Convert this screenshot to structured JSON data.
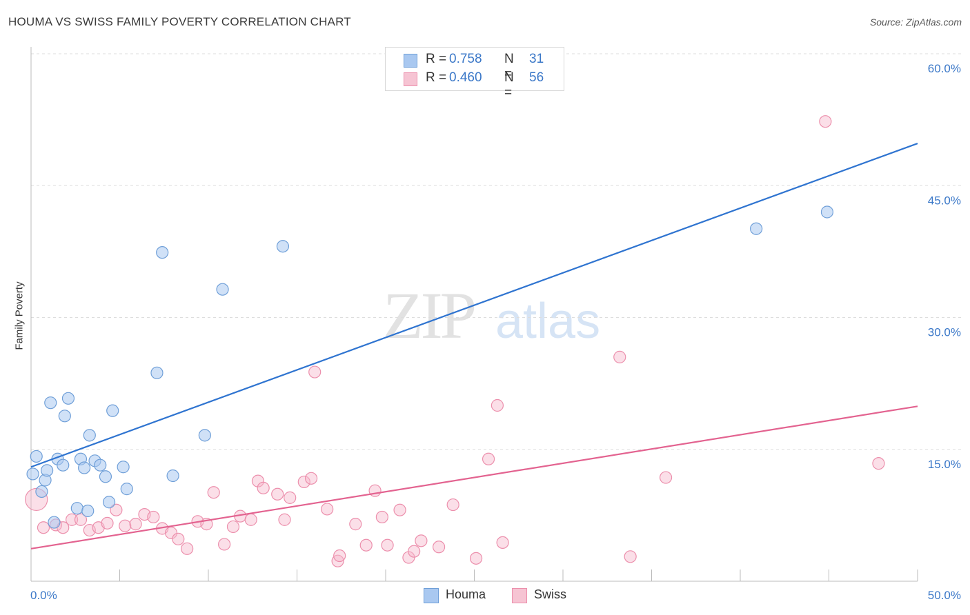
{
  "title": "HOUMA VS SWISS FAMILY POVERTY CORRELATION CHART",
  "source": "Source: ZipAtlas.com",
  "watermark": {
    "zip": "ZIP",
    "atlas": "atlas"
  },
  "legend_top": {
    "rows": [
      {
        "r_label": "R =",
        "r_value": "0.758",
        "n_label": "N =",
        "n_value": "31"
      },
      {
        "r_label": "R =",
        "r_value": "0.460",
        "n_label": "N =",
        "n_value": "56"
      }
    ]
  },
  "legend_bottom": {
    "items": [
      {
        "label": "Houma"
      },
      {
        "label": "Swiss"
      }
    ]
  },
  "colors": {
    "houma_fill": "#a9c8f0",
    "houma_stroke": "#6f9fd8",
    "houma_line": "#2f74d0",
    "swiss_fill": "#f6b9cb",
    "swiss_stroke": "#ec8fac",
    "swiss_line": "#e36390",
    "axis_text": "#3b78c8",
    "grid": "#dddddd"
  },
  "chart_data": {
    "type": "scatter",
    "title": "HOUMA VS SWISS FAMILY POVERTY CORRELATION CHART",
    "xlabel": "",
    "ylabel": "Family Poverty",
    "xlim": [
      0,
      50
    ],
    "ylim": [
      0,
      60
    ],
    "x_tick_labels": [
      "0.0%",
      "50.0%"
    ],
    "y_ticks": [
      15,
      30,
      45,
      60
    ],
    "y_tick_labels": [
      "15.0%",
      "30.0%",
      "45.0%",
      "60.0%"
    ],
    "grid": true,
    "series": [
      {
        "name": "Houma",
        "r": 0.758,
        "n": 31,
        "trend": {
          "x": [
            0,
            50
          ],
          "y": [
            13.0,
            49.8
          ]
        },
        "points": [
          [
            0.1,
            12.2
          ],
          [
            0.3,
            14.2
          ],
          [
            0.6,
            10.2
          ],
          [
            0.8,
            11.5
          ],
          [
            0.9,
            12.6
          ],
          [
            1.1,
            20.3
          ],
          [
            1.3,
            6.7
          ],
          [
            1.5,
            13.9
          ],
          [
            1.8,
            13.2
          ],
          [
            1.9,
            18.8
          ],
          [
            2.1,
            20.8
          ],
          [
            2.6,
            8.3
          ],
          [
            2.8,
            13.9
          ],
          [
            3.0,
            12.9
          ],
          [
            3.2,
            8.0
          ],
          [
            3.3,
            16.6
          ],
          [
            3.6,
            13.7
          ],
          [
            3.9,
            13.2
          ],
          [
            4.2,
            11.9
          ],
          [
            4.4,
            9.0
          ],
          [
            4.6,
            19.4
          ],
          [
            5.2,
            13.0
          ],
          [
            5.4,
            10.5
          ],
          [
            7.1,
            23.7
          ],
          [
            7.4,
            37.4
          ],
          [
            8.0,
            12.0
          ],
          [
            9.8,
            16.6
          ],
          [
            10.8,
            33.2
          ],
          [
            14.2,
            38.1
          ],
          [
            40.9,
            40.1
          ],
          [
            44.9,
            42.0
          ]
        ]
      },
      {
        "name": "Swiss",
        "r": 0.46,
        "n": 56,
        "trend": {
          "x": [
            0,
            50
          ],
          "y": [
            3.7,
            19.9
          ]
        },
        "points": [
          [
            0.3,
            9.3
          ],
          [
            0.7,
            6.1
          ],
          [
            1.4,
            6.4
          ],
          [
            1.8,
            6.1
          ],
          [
            2.3,
            7.0
          ],
          [
            2.8,
            7.0
          ],
          [
            3.3,
            5.8
          ],
          [
            3.8,
            6.1
          ],
          [
            4.3,
            6.6
          ],
          [
            4.8,
            8.1
          ],
          [
            5.3,
            6.3
          ],
          [
            5.9,
            6.5
          ],
          [
            6.4,
            7.6
          ],
          [
            6.9,
            7.3
          ],
          [
            7.4,
            6.0
          ],
          [
            7.9,
            5.5
          ],
          [
            8.3,
            4.8
          ],
          [
            8.8,
            3.7
          ],
          [
            9.4,
            6.8
          ],
          [
            9.9,
            6.5
          ],
          [
            10.3,
            10.1
          ],
          [
            10.9,
            4.2
          ],
          [
            11.4,
            6.2
          ],
          [
            11.8,
            7.4
          ],
          [
            12.4,
            7.0
          ],
          [
            12.8,
            11.4
          ],
          [
            13.1,
            10.6
          ],
          [
            13.9,
            9.9
          ],
          [
            14.3,
            7.0
          ],
          [
            14.6,
            9.5
          ],
          [
            15.4,
            11.3
          ],
          [
            15.8,
            11.7
          ],
          [
            16.0,
            23.8
          ],
          [
            16.7,
            8.2
          ],
          [
            17.3,
            2.3
          ],
          [
            17.4,
            2.9
          ],
          [
            18.3,
            6.5
          ],
          [
            18.9,
            4.1
          ],
          [
            19.4,
            10.3
          ],
          [
            19.8,
            7.3
          ],
          [
            20.1,
            4.1
          ],
          [
            20.8,
            8.1
          ],
          [
            21.3,
            2.7
          ],
          [
            21.6,
            3.4
          ],
          [
            22.0,
            4.6
          ],
          [
            23.0,
            3.9
          ],
          [
            23.8,
            8.7
          ],
          [
            25.1,
            2.6
          ],
          [
            25.8,
            13.9
          ],
          [
            26.3,
            20.0
          ],
          [
            26.6,
            4.4
          ],
          [
            33.2,
            25.5
          ],
          [
            33.8,
            2.8
          ],
          [
            35.8,
            11.8
          ],
          [
            44.8,
            52.3
          ],
          [
            47.8,
            13.4
          ]
        ]
      }
    ]
  }
}
